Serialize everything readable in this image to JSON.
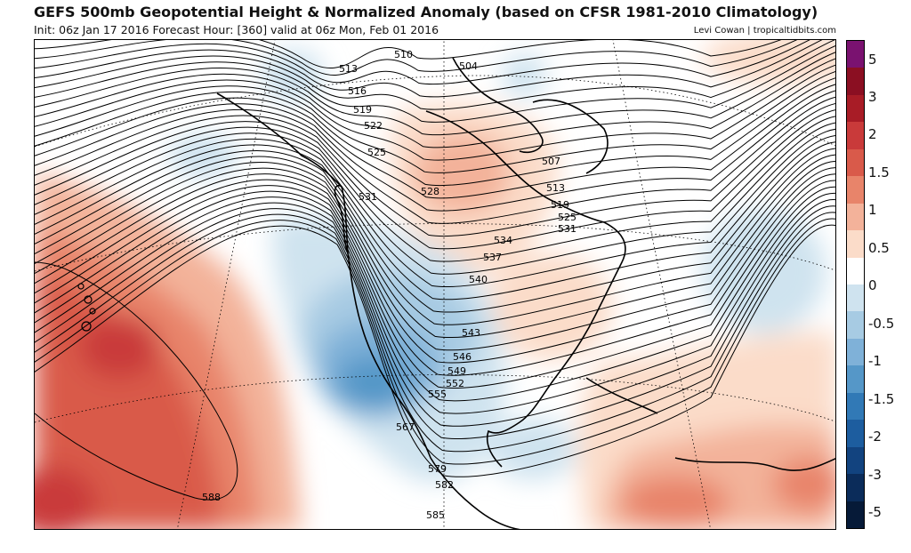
{
  "header": {
    "title": "GEFS 500mb Geopotential Height & Normalized Anomaly (based on CFSR 1981-2010 Climatology)",
    "subtitle": "Init: 06z Jan 17 2016   Forecast Hour: [360]   valid at 06z Mon, Feb 01 2016",
    "credit": "Levi Cowan | tropicaltidbits.com"
  },
  "colorbar": {
    "labels": [
      "5",
      "3",
      "2",
      "1.5",
      "1",
      "0.5",
      "0",
      "-0.5",
      "-1",
      "-1.5",
      "-2",
      "-3",
      "-5"
    ],
    "colors": [
      "#7a1270",
      "#8b0f22",
      "#a81c26",
      "#c93a3a",
      "#d95a4a",
      "#e8846a",
      "#f3b29a",
      "#fbdcc9",
      "#ffffff",
      "#cfe3ef",
      "#a7cbe3",
      "#7fb1d8",
      "#5597c8",
      "#3179b6",
      "#1d5d9f",
      "#12437f",
      "#0b2c5a",
      "#061a38"
    ]
  },
  "contours": [
    {
      "label": "510"
    },
    {
      "label": "513"
    },
    {
      "label": "516"
    },
    {
      "label": "519"
    },
    {
      "label": "522"
    },
    {
      "label": "525"
    },
    {
      "label": "528"
    },
    {
      "label": "531"
    },
    {
      "label": "504"
    },
    {
      "label": "507"
    },
    {
      "label": "513"
    },
    {
      "label": "519"
    },
    {
      "label": "525"
    },
    {
      "label": "531"
    },
    {
      "label": "534"
    },
    {
      "label": "537"
    },
    {
      "label": "540"
    },
    {
      "label": "543"
    },
    {
      "label": "546"
    },
    {
      "label": "549"
    },
    {
      "label": "552"
    },
    {
      "label": "555"
    },
    {
      "label": "567"
    },
    {
      "label": "579"
    },
    {
      "label": "582"
    },
    {
      "label": "585"
    },
    {
      "label": "588"
    }
  ]
}
